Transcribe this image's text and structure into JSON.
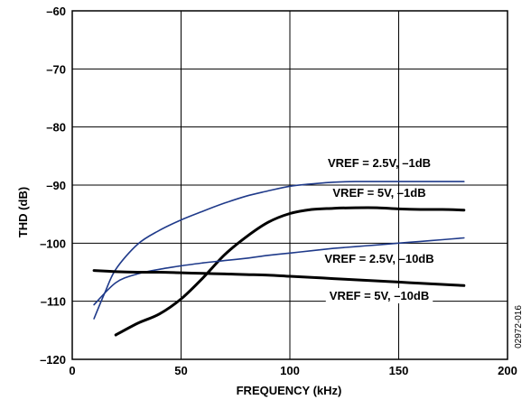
{
  "chart_data": {
    "type": "line",
    "xlabel": "FREQUENCY (kHz)",
    "ylabel": "THD (dB)",
    "xlim": [
      0,
      200
    ],
    "ylim": [
      -120,
      -60
    ],
    "x_ticks": [
      0,
      50,
      100,
      150,
      200
    ],
    "y_ticks": [
      -60,
      -70,
      -80,
      -90,
      -100,
      -110,
      -120
    ],
    "x_tick_labels": [
      "0",
      "50",
      "100",
      "150",
      "200"
    ],
    "y_tick_labels": [
      "–60",
      "–70",
      "–80",
      "–90",
      "–100",
      "–110",
      "–120"
    ],
    "grid": true,
    "series": [
      {
        "name": "VREF = 2.5V, –1dB",
        "color": "#1f3a8a",
        "x": [
          10,
          15,
          20,
          30,
          40,
          50,
          60,
          70,
          80,
          90,
          100,
          110,
          120,
          130,
          140,
          150,
          160,
          170,
          180
        ],
        "y": [
          -113.0,
          -108.5,
          -104.5,
          -100.2,
          -97.8,
          -96.0,
          -94.5,
          -93.1,
          -91.9,
          -91.0,
          -90.2,
          -89.8,
          -89.5,
          -89.4,
          -89.4,
          -89.4,
          -89.4,
          -89.4,
          -89.4
        ]
      },
      {
        "name": "VREF = 5V, –1dB",
        "color": "#000000",
        "x": [
          20,
          30,
          40,
          50,
          60,
          70,
          80,
          90,
          100,
          110,
          120,
          130,
          140,
          150,
          160,
          170,
          180
        ],
        "y": [
          -115.8,
          -113.8,
          -112.2,
          -109.6,
          -106.0,
          -102.0,
          -98.9,
          -96.4,
          -94.9,
          -94.2,
          -94.0,
          -93.9,
          -93.9,
          -94.1,
          -94.2,
          -94.2,
          -94.3
        ]
      },
      {
        "name": "VREF = 2.5V, –10dB",
        "color": "#1f3a8a",
        "x": [
          10,
          20,
          30,
          40,
          50,
          60,
          70,
          80,
          90,
          100,
          110,
          120,
          130,
          140,
          150,
          160,
          170,
          180
        ],
        "y": [
          -110.6,
          -106.8,
          -105.3,
          -104.5,
          -103.9,
          -103.4,
          -103.0,
          -102.6,
          -102.1,
          -101.7,
          -101.3,
          -100.9,
          -100.6,
          -100.3,
          -100.0,
          -99.7,
          -99.4,
          -99.1
        ]
      },
      {
        "name": "VREF = 5V, –10dB",
        "color": "#000000",
        "x": [
          10,
          20,
          30,
          40,
          50,
          60,
          70,
          80,
          90,
          100,
          110,
          120,
          130,
          140,
          150,
          160,
          170,
          180
        ],
        "y": [
          -104.7,
          -104.9,
          -105.0,
          -105.0,
          -105.1,
          -105.2,
          -105.3,
          -105.4,
          -105.5,
          -105.7,
          -105.9,
          -106.1,
          -106.3,
          -106.5,
          -106.7,
          -106.9,
          -107.1,
          -107.3
        ]
      }
    ]
  },
  "figure_code": "02972-016"
}
